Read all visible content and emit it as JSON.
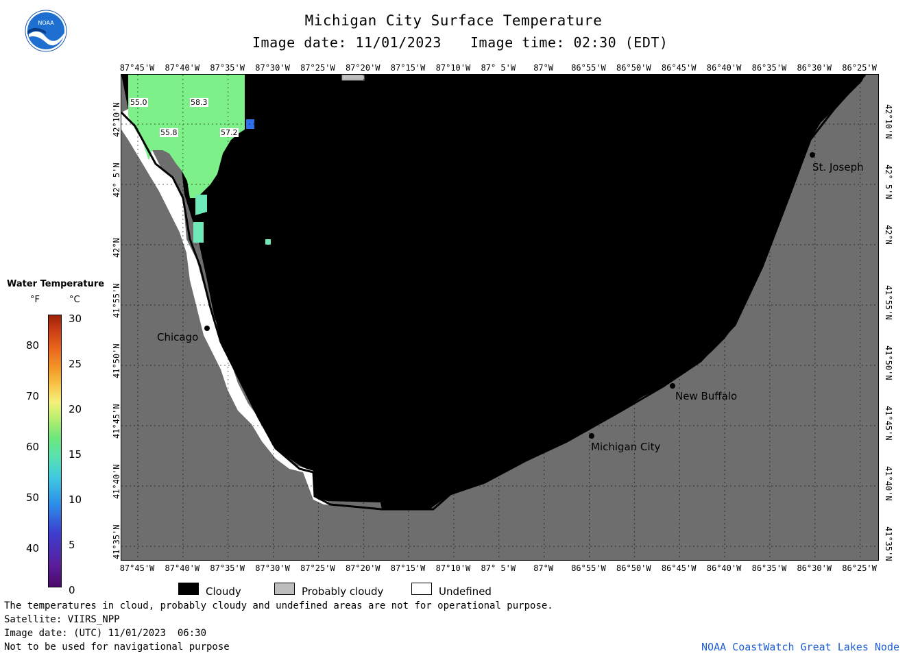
{
  "header": {
    "title": "Michigan City Surface Temperature",
    "image_date": "Image date: 11/01/2023",
    "image_time": "Image time: 02:30 (EDT)"
  },
  "logo": {
    "text": "NOAA"
  },
  "map": {
    "lon_labels": [
      "87°45'W",
      "87°40'W",
      "87°35'W",
      "87°30'W",
      "87°25'W",
      "87°20'W",
      "87°15'W",
      "87°10'W",
      "87° 5'W",
      "87°W",
      "86°55'W",
      "86°50'W",
      "86°45'W",
      "86°40'W",
      "86°35'W",
      "86°30'W",
      "86°25'W"
    ],
    "lat_labels": [
      "42°10'N",
      "42° 5'N",
      "42°N",
      "41°55'N",
      "41°50'N",
      "41°45'N",
      "41°40'N",
      "41°35'N"
    ],
    "cities": [
      {
        "name": "St. Joseph"
      },
      {
        "name": "Chicago"
      },
      {
        "name": "New Buffalo"
      },
      {
        "name": "Michigan City"
      }
    ],
    "temperature_labels": [
      "55.0",
      "58.3",
      "55.8",
      "57.2"
    ],
    "colors": {
      "land": "#6e6e6e",
      "cloudy": "#000000",
      "water_cool": "#7ef08a",
      "water_mid": "#6fe9b7"
    }
  },
  "legend": {
    "title": "Water Temperature",
    "unit_f": "°F",
    "unit_c": "°C",
    "f_ticks": [
      "80",
      "70",
      "60",
      "50",
      "40"
    ],
    "c_ticks": [
      "30",
      "25",
      "20",
      "15",
      "10",
      "5",
      "0"
    ],
    "items": [
      {
        "label": "Cloudy",
        "color": "#000000"
      },
      {
        "label": "Probably cloudy",
        "color": "#bdbdbd"
      },
      {
        "label": "Undefined",
        "color": "#ffffff"
      }
    ]
  },
  "footer": {
    "line1": "The temperatures in cloud, probably cloudy and undefined areas are not for operational purpose.",
    "line2": "Satellite: VIIRS_NPP",
    "line3": "Image date: (UTC) 11/01/2023  06:30",
    "line4": "Not to be used for navigational purpose",
    "credit": "NOAA CoastWatch Great Lakes Node"
  }
}
